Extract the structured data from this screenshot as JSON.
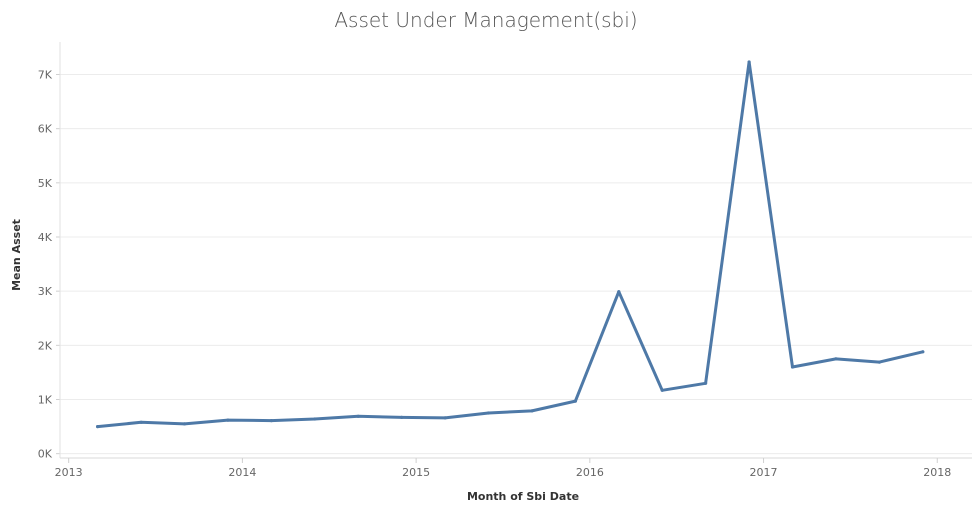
{
  "chart_data": {
    "type": "line",
    "title": "Asset Under Management(sbi)",
    "xlabel": "Month of Sbi Date",
    "ylabel": "Mean Asset",
    "x_tick_labels": [
      "2013",
      "2014",
      "2015",
      "2016",
      "2017",
      "2018"
    ],
    "x_tick_values": [
      2013,
      2014,
      2015,
      2016,
      2017,
      2018
    ],
    "y_tick_labels": [
      "0K",
      "1K",
      "2K",
      "3K",
      "4K",
      "5K",
      "6K",
      "7K"
    ],
    "y_tick_values": [
      0,
      1000,
      2000,
      3000,
      4000,
      5000,
      6000,
      7000
    ],
    "xlim": [
      2012.95,
      2018.2
    ],
    "ylim": [
      -80,
      7600
    ],
    "grid": true,
    "series": [
      {
        "color": "#4e79a7",
        "points": [
          {
            "x": "2013-03",
            "y": 500
          },
          {
            "x": "2013-06",
            "y": 580
          },
          {
            "x": "2013-09",
            "y": 550
          },
          {
            "x": "2013-12",
            "y": 620
          },
          {
            "x": "2014-03",
            "y": 610
          },
          {
            "x": "2014-06",
            "y": 640
          },
          {
            "x": "2014-09",
            "y": 690
          },
          {
            "x": "2014-12",
            "y": 670
          },
          {
            "x": "2015-03",
            "y": 660
          },
          {
            "x": "2015-06",
            "y": 750
          },
          {
            "x": "2015-09",
            "y": 790
          },
          {
            "x": "2015-12",
            "y": 970
          },
          {
            "x": "2016-03",
            "y": 2990
          },
          {
            "x": "2016-06",
            "y": 1170
          },
          {
            "x": "2016-09",
            "y": 1300
          },
          {
            "x": "2016-12",
            "y": 7230
          },
          {
            "x": "2017-03",
            "y": 1600
          },
          {
            "x": "2017-06",
            "y": 1750
          },
          {
            "x": "2017-09",
            "y": 1690
          },
          {
            "x": "2017-12",
            "y": 1880
          }
        ]
      }
    ]
  }
}
